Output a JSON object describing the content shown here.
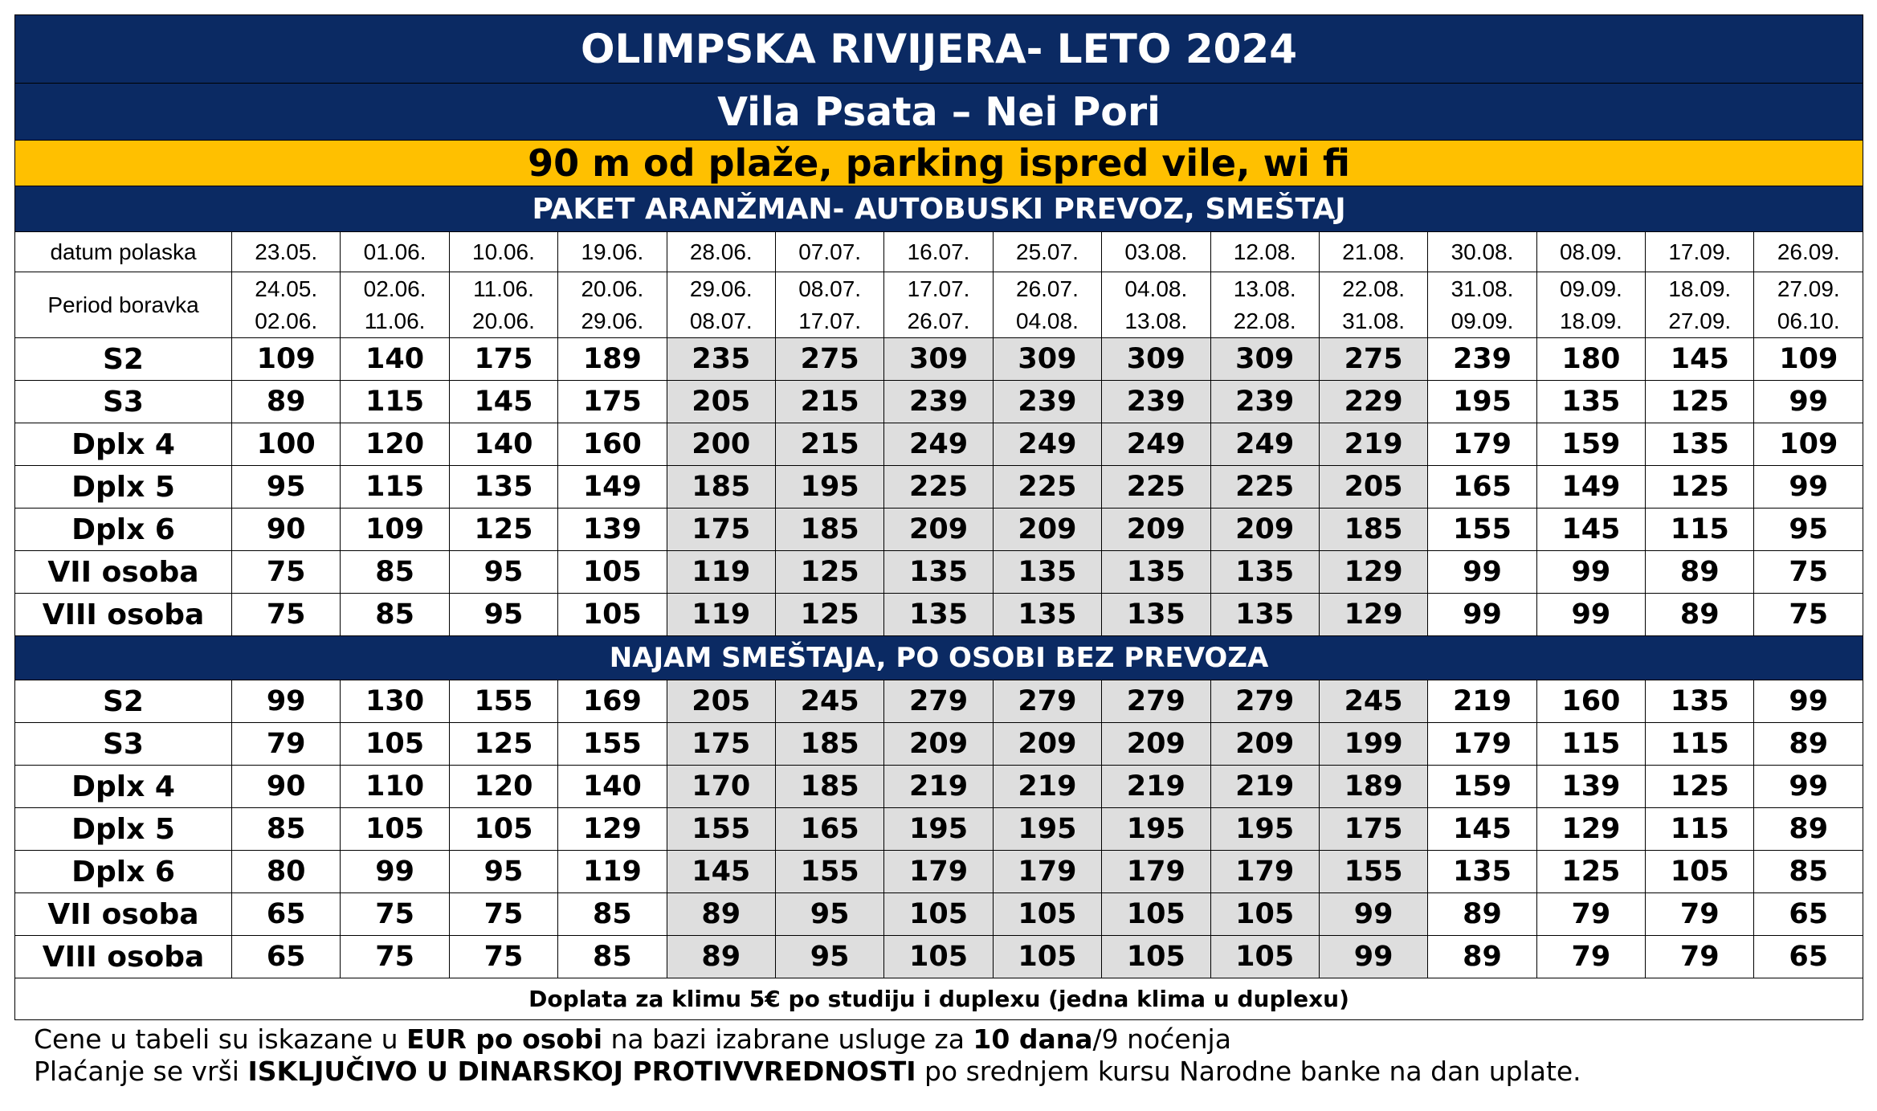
{
  "title": "OLIMPSKA RIVIJERA- LETO 2024",
  "subtitle": "Vila Psata  – Nei Pori",
  "highlight": "90 m od plaže, parking ispred vile, wi fi",
  "section1_title": "PAKET ARANŽMAN- AUTOBUSKI PREVOZ, SMEŠTAJ",
  "section2_title": "NAJAM SMEŠTAJA, PO OSOBI BEZ PREVOZA",
  "departure_label": "datum polaska",
  "period_label": "Period boravka",
  "departures": [
    "23.05.",
    "01.06.",
    "10.06.",
    "19.06.",
    "28.06.",
    "07.07.",
    "16.07.",
    "25.07.",
    "03.08.",
    "12.08.",
    "21.08.",
    "30.08.",
    "08.09.",
    "17.09.",
    "26.09."
  ],
  "periods": [
    [
      "24.05.",
      "02.06."
    ],
    [
      "02.06.",
      "11.06."
    ],
    [
      "11.06.",
      "20.06."
    ],
    [
      "20.06.",
      "29.06."
    ],
    [
      "29.06.",
      "08.07."
    ],
    [
      "08.07.",
      "17.07."
    ],
    [
      "17.07.",
      "26.07."
    ],
    [
      "26.07.",
      "04.08."
    ],
    [
      "04.08.",
      "13.08."
    ],
    [
      "13.08.",
      "22.08."
    ],
    [
      "22.08.",
      "31.08."
    ],
    [
      "31.08.",
      "09.09."
    ],
    [
      "09.09.",
      "18.09."
    ],
    [
      "18.09.",
      "27.09."
    ],
    [
      "27.09.",
      "06.10."
    ]
  ],
  "highlight_columns": [
    4,
    5,
    6,
    7,
    8,
    9,
    10
  ],
  "colors": {
    "header_bg": "#0b2a63",
    "banner_bg": "#ffc000",
    "highlight_cell": "#dedede"
  },
  "package_rows": [
    {
      "label": "S2",
      "values": [
        109,
        140,
        175,
        189,
        235,
        275,
        309,
        309,
        309,
        309,
        275,
        239,
        180,
        145,
        109
      ]
    },
    {
      "label": "S3",
      "values": [
        89,
        115,
        145,
        175,
        205,
        215,
        239,
        239,
        239,
        239,
        229,
        195,
        135,
        125,
        99
      ]
    },
    {
      "label": "Dplx 4",
      "values": [
        100,
        120,
        140,
        160,
        200,
        215,
        249,
        249,
        249,
        249,
        219,
        179,
        159,
        135,
        109
      ]
    },
    {
      "label": "Dplx 5",
      "values": [
        95,
        115,
        135,
        149,
        185,
        195,
        225,
        225,
        225,
        225,
        205,
        165,
        149,
        125,
        99
      ]
    },
    {
      "label": "Dplx 6",
      "values": [
        90,
        109,
        125,
        139,
        175,
        185,
        209,
        209,
        209,
        209,
        185,
        155,
        145,
        115,
        95
      ]
    },
    {
      "label": "VII osoba",
      "values": [
        75,
        85,
        95,
        105,
        119,
        125,
        135,
        135,
        135,
        135,
        129,
        99,
        99,
        89,
        75
      ]
    },
    {
      "label": "VIII osoba",
      "values": [
        75,
        85,
        95,
        105,
        119,
        125,
        135,
        135,
        135,
        135,
        129,
        99,
        99,
        89,
        75
      ]
    }
  ],
  "rental_rows": [
    {
      "label": "S2",
      "values": [
        99,
        130,
        155,
        169,
        205,
        245,
        279,
        279,
        279,
        279,
        245,
        219,
        160,
        135,
        99
      ]
    },
    {
      "label": "S3",
      "values": [
        79,
        105,
        125,
        155,
        175,
        185,
        209,
        209,
        209,
        209,
        199,
        179,
        115,
        115,
        89
      ]
    },
    {
      "label": "Dplx 4",
      "values": [
        90,
        110,
        120,
        140,
        170,
        185,
        219,
        219,
        219,
        219,
        189,
        159,
        139,
        125,
        99
      ]
    },
    {
      "label": "Dplx 5",
      "values": [
        85,
        105,
        105,
        129,
        155,
        165,
        195,
        195,
        195,
        195,
        175,
        145,
        129,
        115,
        89
      ]
    },
    {
      "label": "Dplx 6",
      "values": [
        80,
        99,
        95,
        119,
        145,
        155,
        179,
        179,
        179,
        179,
        155,
        135,
        125,
        105,
        85
      ]
    },
    {
      "label": "VII osoba",
      "values": [
        65,
        75,
        75,
        85,
        89,
        95,
        105,
        105,
        105,
        105,
        99,
        89,
        79,
        79,
        65
      ]
    },
    {
      "label": "VIII osoba",
      "values": [
        65,
        75,
        75,
        85,
        89,
        95,
        105,
        105,
        105,
        105,
        99,
        89,
        79,
        79,
        65
      ]
    }
  ],
  "footnote": "Doplata za klimu 5€ po studiju i duplexu (jedna klima u duplexu)",
  "note1": {
    "part1": "Cene u tabeli su iskazane u ",
    "bold1": "EUR po osobi",
    "part2": " na bazi izabrane usluge za ",
    "bold2": "10 dana",
    "part3": "/9 noćenja"
  },
  "note2": {
    "part1": "Plaćanje se vrši  ",
    "bold1": "ISKLJUČIVO U DINARSKOJ PROTIVVREDNOSTI",
    "part2": "  po srednjem kursu Narodne banke na dan uplate."
  }
}
